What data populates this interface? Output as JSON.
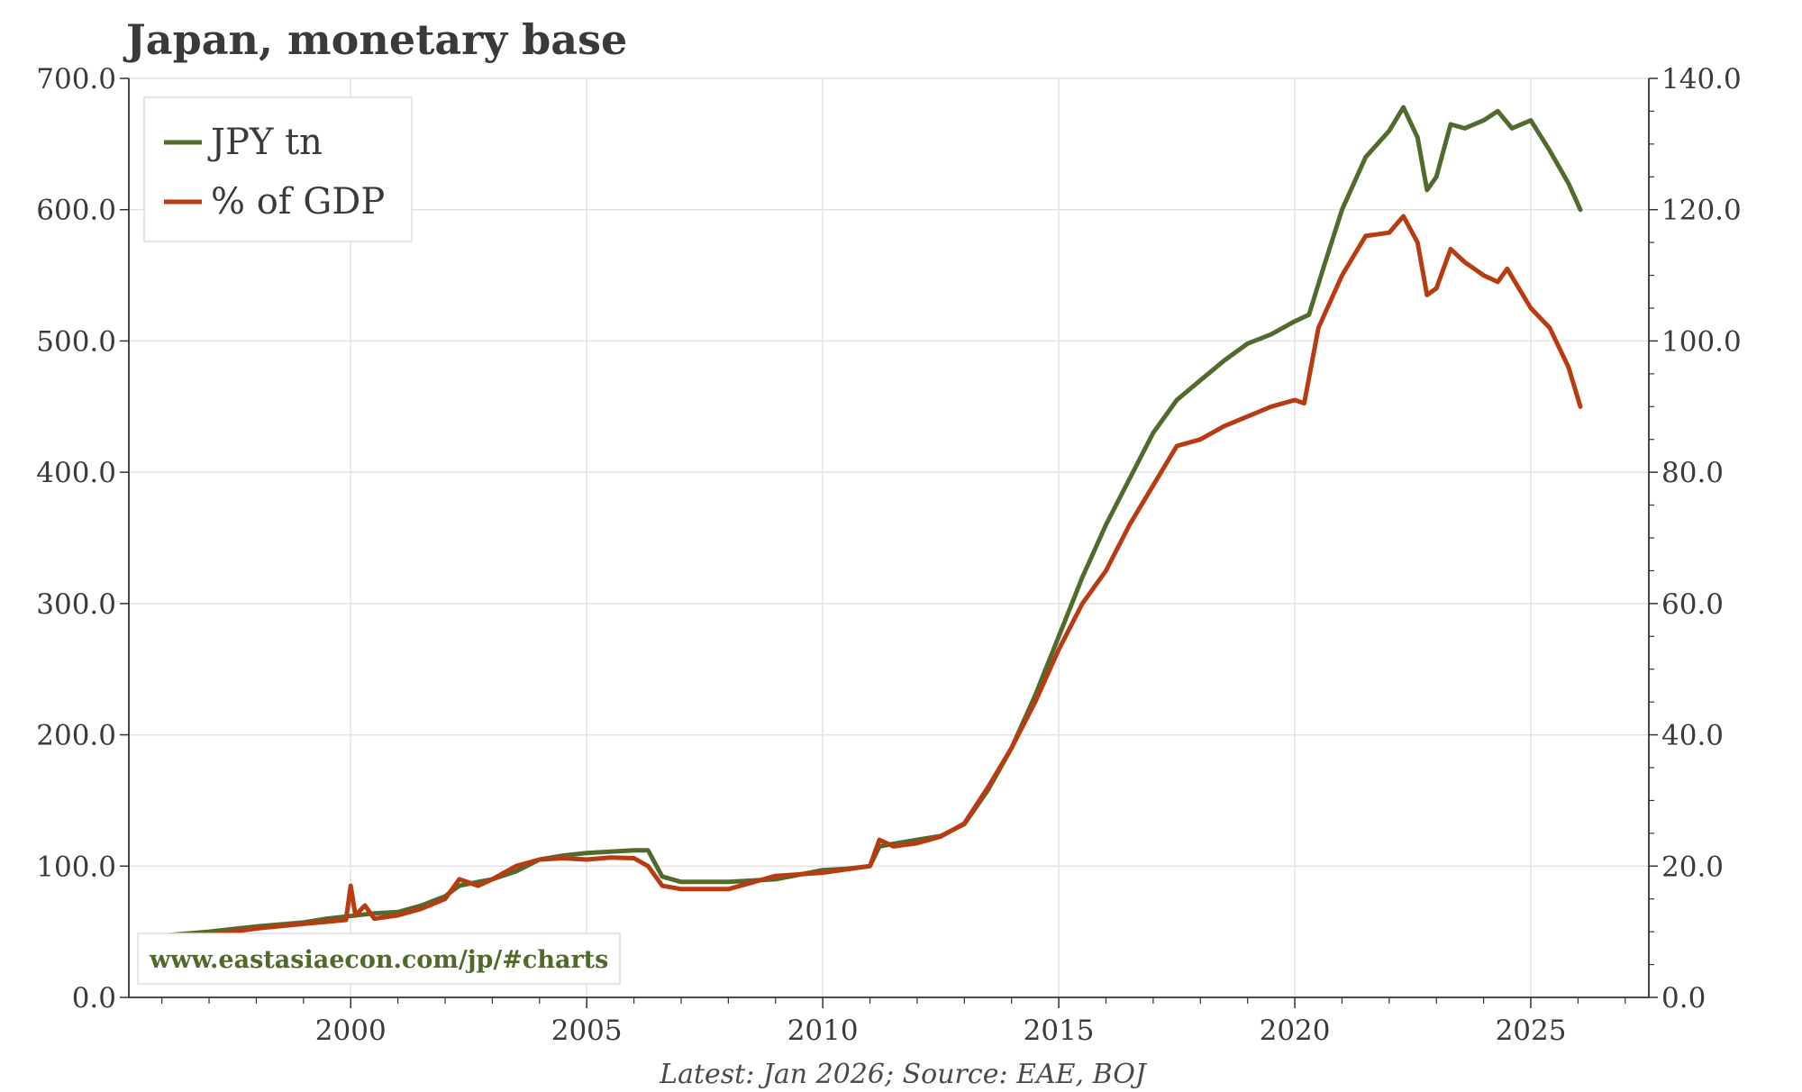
{
  "chart_data": {
    "type": "line",
    "title": "Japan, monetary base",
    "footer": "Latest: Jan 2026; Source: EAE, BOJ",
    "watermark": "www.eastasiaecon.com/jp/#charts",
    "xlim": [
      1995.3,
      2027.5
    ],
    "x_ticks": [
      2000,
      2005,
      2010,
      2015,
      2020,
      2025
    ],
    "y_left": {
      "lim": [
        0,
        700
      ],
      "ticks": [
        0,
        100,
        200,
        300,
        400,
        500,
        600,
        700
      ],
      "tick_labels": [
        "0.0",
        "100.0",
        "200.0",
        "300.0",
        "400.0",
        "500.0",
        "600.0",
        "700.0"
      ]
    },
    "y_right": {
      "lim": [
        0,
        140
      ],
      "ticks": [
        0,
        20,
        40,
        60,
        80,
        100,
        120,
        140
      ],
      "tick_labels": [
        "0.0",
        "20.0",
        "40.0",
        "60.0",
        "80.0",
        "100.0",
        "120.0",
        "140.0"
      ]
    },
    "legend_position": "top-left",
    "series": [
      {
        "name": "JPY tn",
        "axis": "left",
        "color": "#526b2d",
        "points": [
          [
            1996.0,
            47
          ],
          [
            1997.0,
            50
          ],
          [
            1998.0,
            54
          ],
          [
            1999.0,
            57
          ],
          [
            1999.5,
            60
          ],
          [
            2000.0,
            62
          ],
          [
            2000.5,
            64
          ],
          [
            2001.0,
            65
          ],
          [
            2001.5,
            70
          ],
          [
            2002.0,
            77
          ],
          [
            2002.3,
            85
          ],
          [
            2002.7,
            88
          ],
          [
            2003.0,
            90
          ],
          [
            2003.5,
            96
          ],
          [
            2004.0,
            105
          ],
          [
            2004.5,
            108
          ],
          [
            2005.0,
            110
          ],
          [
            2005.5,
            111
          ],
          [
            2006.0,
            112
          ],
          [
            2006.3,
            112
          ],
          [
            2006.6,
            92
          ],
          [
            2007.0,
            88
          ],
          [
            2008.0,
            88
          ],
          [
            2009.0,
            90
          ],
          [
            2010.0,
            97
          ],
          [
            2010.5,
            98
          ],
          [
            2011.0,
            100
          ],
          [
            2011.2,
            115
          ],
          [
            2011.5,
            117
          ],
          [
            2012.0,
            120
          ],
          [
            2012.5,
            123
          ],
          [
            2013.0,
            132
          ],
          [
            2013.5,
            158
          ],
          [
            2014.0,
            190
          ],
          [
            2014.5,
            230
          ],
          [
            2015.0,
            275
          ],
          [
            2015.5,
            320
          ],
          [
            2016.0,
            360
          ],
          [
            2016.5,
            395
          ],
          [
            2017.0,
            430
          ],
          [
            2017.5,
            455
          ],
          [
            2018.0,
            470
          ],
          [
            2018.5,
            485
          ],
          [
            2019.0,
            498
          ],
          [
            2019.5,
            505
          ],
          [
            2020.0,
            515
          ],
          [
            2020.3,
            520
          ],
          [
            2020.6,
            555
          ],
          [
            2021.0,
            600
          ],
          [
            2021.5,
            640
          ],
          [
            2022.0,
            660
          ],
          [
            2022.3,
            678
          ],
          [
            2022.6,
            655
          ],
          [
            2022.8,
            615
          ],
          [
            2023.0,
            625
          ],
          [
            2023.3,
            665
          ],
          [
            2023.6,
            662
          ],
          [
            2024.0,
            668
          ],
          [
            2024.3,
            675
          ],
          [
            2024.6,
            662
          ],
          [
            2025.0,
            668
          ],
          [
            2025.4,
            645
          ],
          [
            2025.8,
            620
          ],
          [
            2026.05,
            600
          ]
        ]
      },
      {
        "name": "% of GDP",
        "axis": "right",
        "color": "#b83c12",
        "points": [
          [
            1996.5,
            9.0
          ],
          [
            1997.0,
            9.5
          ],
          [
            1998.0,
            10.5
          ],
          [
            1999.0,
            11.2
          ],
          [
            1999.9,
            11.8
          ],
          [
            2000.0,
            17.0
          ],
          [
            2000.1,
            12.5
          ],
          [
            2000.3,
            14.0
          ],
          [
            2000.5,
            12.0
          ],
          [
            2001.0,
            12.5
          ],
          [
            2001.5,
            13.5
          ],
          [
            2002.0,
            15.0
          ],
          [
            2002.3,
            18.0
          ],
          [
            2002.7,
            17.0
          ],
          [
            2003.0,
            18.0
          ],
          [
            2003.5,
            20.0
          ],
          [
            2004.0,
            21.0
          ],
          [
            2004.5,
            21.2
          ],
          [
            2005.0,
            21.0
          ],
          [
            2005.5,
            21.3
          ],
          [
            2006.0,
            21.2
          ],
          [
            2006.3,
            20.0
          ],
          [
            2006.6,
            17.0
          ],
          [
            2007.0,
            16.5
          ],
          [
            2008.0,
            16.5
          ],
          [
            2009.0,
            18.5
          ],
          [
            2010.0,
            19.0
          ],
          [
            2010.5,
            19.5
          ],
          [
            2011.0,
            20.0
          ],
          [
            2011.2,
            24.0
          ],
          [
            2011.5,
            23.0
          ],
          [
            2012.0,
            23.5
          ],
          [
            2012.5,
            24.5
          ],
          [
            2013.0,
            26.5
          ],
          [
            2013.5,
            32.0
          ],
          [
            2014.0,
            38.0
          ],
          [
            2014.5,
            45.0
          ],
          [
            2015.0,
            53.0
          ],
          [
            2015.5,
            60.0
          ],
          [
            2016.0,
            65.0
          ],
          [
            2016.5,
            72.0
          ],
          [
            2017.0,
            78.0
          ],
          [
            2017.5,
            84.0
          ],
          [
            2018.0,
            85.0
          ],
          [
            2018.5,
            87.0
          ],
          [
            2019.0,
            88.5
          ],
          [
            2019.5,
            90.0
          ],
          [
            2020.0,
            91.0
          ],
          [
            2020.2,
            90.5
          ],
          [
            2020.5,
            102.0
          ],
          [
            2021.0,
            110.0
          ],
          [
            2021.5,
            116.0
          ],
          [
            2022.0,
            116.5
          ],
          [
            2022.3,
            119.0
          ],
          [
            2022.6,
            115.0
          ],
          [
            2022.8,
            107.0
          ],
          [
            2023.0,
            108.0
          ],
          [
            2023.3,
            114.0
          ],
          [
            2023.6,
            112.0
          ],
          [
            2024.0,
            110.0
          ],
          [
            2024.3,
            109.0
          ],
          [
            2024.5,
            111.0
          ],
          [
            2025.0,
            105.0
          ],
          [
            2025.4,
            102.0
          ],
          [
            2025.8,
            96.0
          ],
          [
            2026.05,
            90.0
          ]
        ]
      }
    ]
  }
}
